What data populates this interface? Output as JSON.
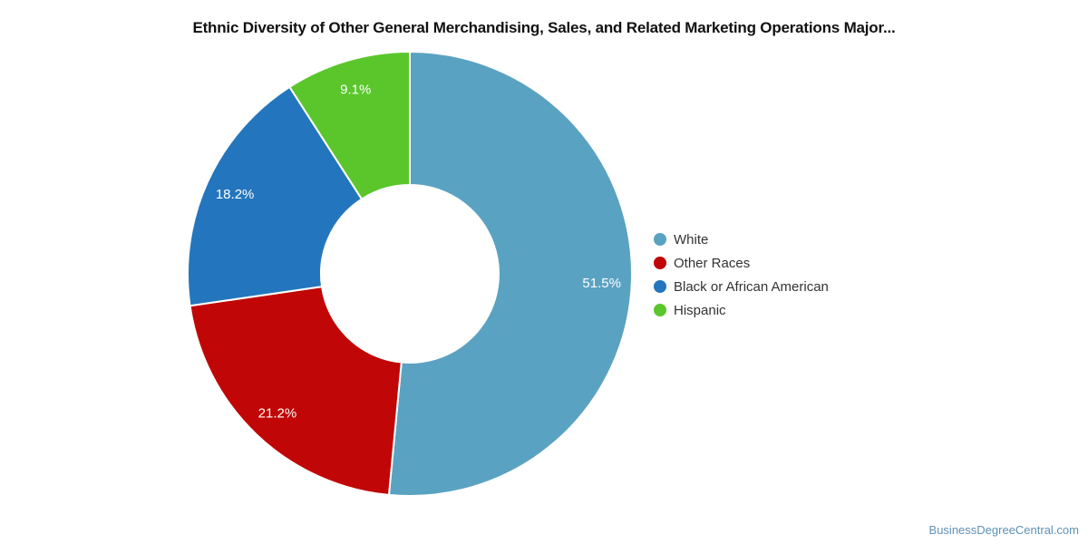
{
  "title": "Ethnic Diversity of Other General Merchandising, Sales, and Related Marketing Operations Major...",
  "watermark": {
    "label": "BusinessDegreeCentral.com",
    "color": "#5E92B5"
  },
  "chart_data": {
    "type": "pie",
    "subtype": "donut",
    "title": "Ethnic Diversity of Other General Merchandising, Sales, and Related Marketing Operations Major...",
    "categories": [
      "White",
      "Other Races",
      "Black or African American",
      "Hispanic"
    ],
    "values": [
      51.5,
      21.2,
      18.2,
      9.1
    ],
    "value_labels": [
      "51.5%",
      "21.2%",
      "18.2%",
      "9.1%"
    ],
    "unit": "percent",
    "colors": [
      "#5AA2C1",
      "#C00606",
      "#2376BD",
      "#5AC62B"
    ],
    "start_angle_deg": 0,
    "direction": "clockwise",
    "donut_hole_ratio": 0.4,
    "slice_border_color": "#FFFFFF",
    "slice_label_color": "#FFFFFF",
    "legend_position": "right",
    "background_color": "#FFFFFF"
  }
}
